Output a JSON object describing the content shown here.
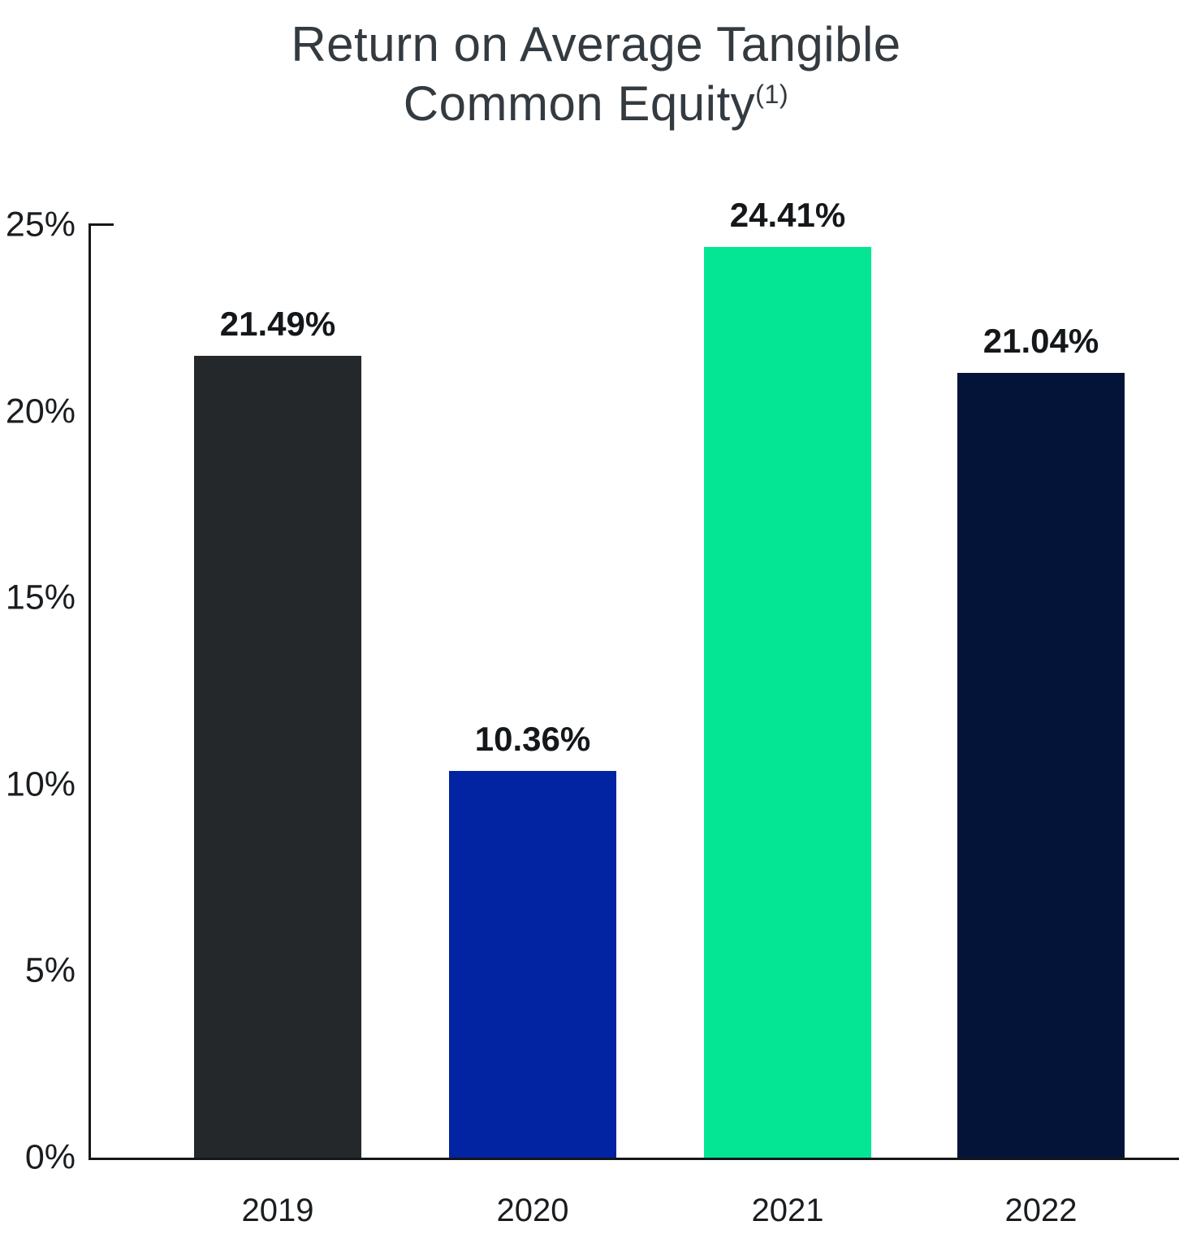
{
  "title": {
    "line1": "Return on Average Tangible",
    "line2": "Common Equity",
    "superscript": "(1)"
  },
  "chart_data": {
    "type": "bar",
    "title": "Return on Average Tangible Common Equity(1)",
    "categories": [
      "2019",
      "2020",
      "2021",
      "2022"
    ],
    "values": [
      21.49,
      10.36,
      24.41,
      21.04
    ],
    "value_labels": [
      "21.49%",
      "10.36%",
      "24.41%",
      "21.04%"
    ],
    "bar_colors": [
      "#24282b",
      "#0223a2",
      "#05e695",
      "#041439"
    ],
    "xlabel": "",
    "ylabel": "",
    "ylim": [
      0,
      25
    ],
    "ytick_step": 5,
    "ytick_labels": [
      "0%",
      "5%",
      "10%",
      "15%",
      "20%",
      "25%"
    ],
    "grid": false,
    "legend": "none",
    "colors": {
      "title_color": "#333a40",
      "axis_color": "#141719",
      "value_label_color": "#14181b",
      "tick_label_color": "#1a1d20",
      "background": "#ffffff"
    }
  }
}
